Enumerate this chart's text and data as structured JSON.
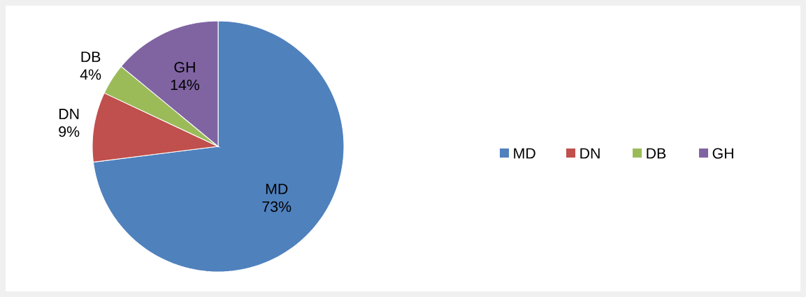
{
  "chart_data": {
    "type": "pie",
    "categories": [
      "MD",
      "DN",
      "DB",
      "GH"
    ],
    "values": [
      73,
      9,
      4,
      14
    ],
    "value_labels": [
      "73%",
      "9%",
      "4%",
      "14%"
    ],
    "colors": [
      "#4f81bd",
      "#c0504d",
      "#9bbb59",
      "#8064a2"
    ],
    "legend": "right"
  }
}
